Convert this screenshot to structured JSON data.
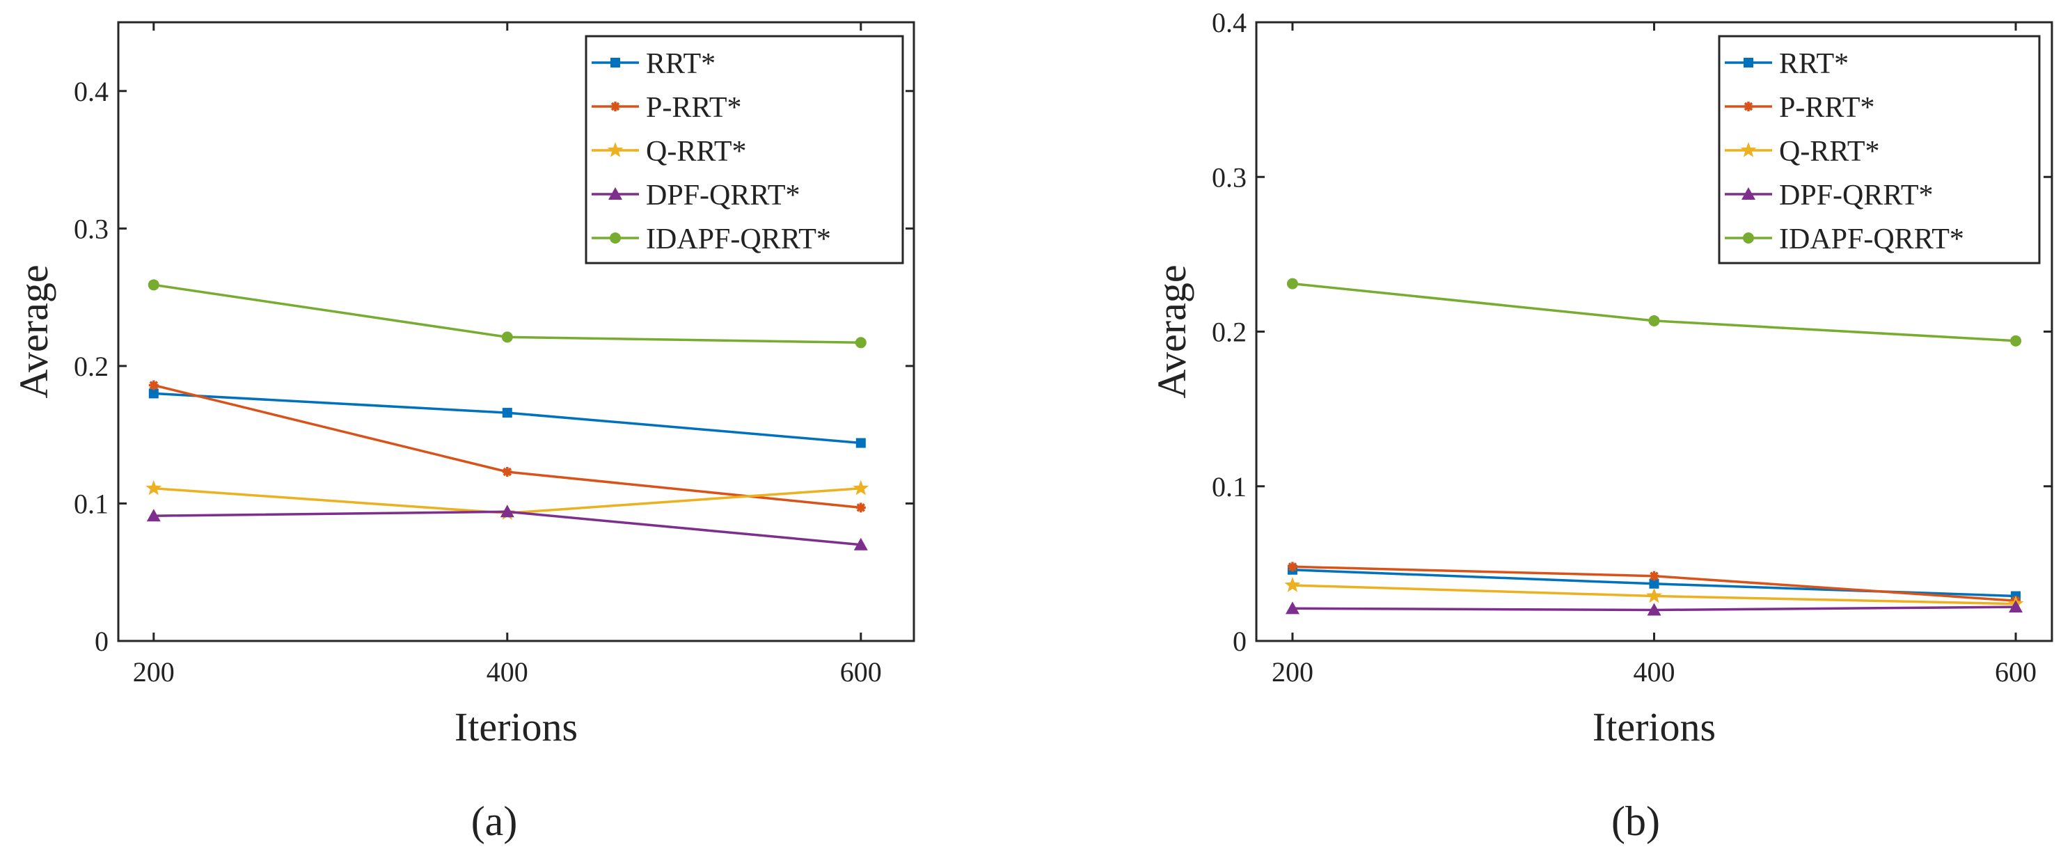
{
  "figure": {
    "subfigure_labels": [
      "(a)",
      "(b)"
    ]
  },
  "colors": {
    "RRT*": "#0072BD",
    "P-RRT*": "#D95319",
    "Q-RRT*": "#EDB120",
    "DPF-QRRT*": "#7E2F8E",
    "IDAPF-QRRT*": "#77AC30"
  },
  "chart_data": [
    {
      "type": "line",
      "panel": "(a)",
      "title": "",
      "xlabel": "Iterions",
      "ylabel": "Average",
      "x": [
        200,
        400,
        600
      ],
      "xticks": [
        "200",
        "400",
        "600"
      ],
      "xlim": [
        180,
        630
      ],
      "ylim": [
        0,
        0.45
      ],
      "yticks": [
        "0",
        "0.1",
        "0.2",
        "0.3",
        "0.4"
      ],
      "ytick_values": [
        0,
        0.1,
        0.2,
        0.3,
        0.4
      ],
      "legend_position": "top-right",
      "series": [
        {
          "name": "RRT*",
          "marker": "square",
          "values": [
            0.18,
            0.166,
            0.144
          ]
        },
        {
          "name": "P-RRT*",
          "marker": "asterisk",
          "values": [
            0.186,
            0.123,
            0.097
          ]
        },
        {
          "name": "Q-RRT*",
          "marker": "star",
          "values": [
            0.111,
            0.093,
            0.111
          ]
        },
        {
          "name": "DPF-QRRT*",
          "marker": "triangle",
          "values": [
            0.091,
            0.094,
            0.07
          ]
        },
        {
          "name": "IDAPF-QRRT*",
          "marker": "circle",
          "values": [
            0.259,
            0.221,
            0.217
          ]
        }
      ]
    },
    {
      "type": "line",
      "panel": "(b)",
      "title": "",
      "xlabel": "Iterions",
      "ylabel": "Average",
      "x": [
        200,
        400,
        600
      ],
      "xticks": [
        "200",
        "400",
        "600"
      ],
      "xlim": [
        180,
        620
      ],
      "ylim": [
        0,
        0.4
      ],
      "yticks": [
        "0",
        "0.1",
        "0.2",
        "0.3",
        "0.4"
      ],
      "ytick_values": [
        0,
        0.1,
        0.2,
        0.3,
        0.4
      ],
      "legend_position": "top-right",
      "series": [
        {
          "name": "RRT*",
          "marker": "square",
          "values": [
            0.046,
            0.037,
            0.029
          ]
        },
        {
          "name": "P-RRT*",
          "marker": "asterisk",
          "values": [
            0.048,
            0.042,
            0.026
          ]
        },
        {
          "name": "Q-RRT*",
          "marker": "star",
          "values": [
            0.036,
            0.029,
            0.024
          ]
        },
        {
          "name": "DPF-QRRT*",
          "marker": "triangle",
          "values": [
            0.021,
            0.02,
            0.022
          ]
        },
        {
          "name": "IDAPF-QRRT*",
          "marker": "circle",
          "values": [
            0.231,
            0.207,
            0.194
          ]
        }
      ]
    }
  ]
}
